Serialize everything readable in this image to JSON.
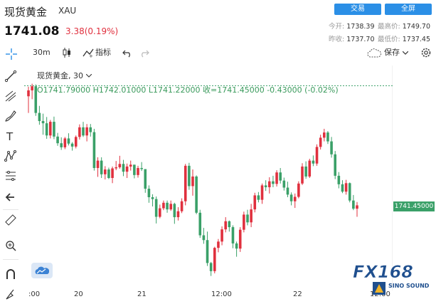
{
  "header": {
    "name": "现货黄金",
    "code": "XAU",
    "price": "1741.08",
    "change": "3.38(0.19%)",
    "trade_btn": "交易",
    "fullscreen_btn": "全屏"
  },
  "stats": {
    "open_label": "今开:",
    "open": "1738.39",
    "high_label": "最高价:",
    "high": "1749.70",
    "prev_label": "昨收:",
    "prev": "1737.70",
    "low_label": "最低价:",
    "low": "1737.45"
  },
  "toolbar": {
    "interval": "30m",
    "indicators": "指标",
    "save": "保存"
  },
  "legend": {
    "title": "现货黄金",
    "interval": "30",
    "ohlc": "O1741.79000  H1742.01000  L1741.22000  收=1741.45000  -0.43000  (-0.02%)"
  },
  "chart_data": {
    "type": "candlestick",
    "last_price_label": "1741.45000",
    "x_ticks": [
      ":00",
      "20",
      "21",
      "12:00",
      "22",
      "12:00"
    ],
    "up_color": "#e0303e",
    "down_color": "#3aa068",
    "candles": [
      [
        1738.6,
        1741.2,
        1734.1,
        1740.2
      ],
      [
        1740.2,
        1742.0,
        1737.8,
        1741.3
      ],
      [
        1741.3,
        1741.8,
        1733.3,
        1734.1
      ],
      [
        1734.1,
        1736.0,
        1730.9,
        1731.9
      ],
      [
        1731.9,
        1733.9,
        1728.2,
        1731.3
      ],
      [
        1731.3,
        1733.0,
        1727.1,
        1728.0
      ],
      [
        1728.0,
        1732.2,
        1727.2,
        1731.7
      ],
      [
        1731.7,
        1733.1,
        1727.0,
        1727.7
      ],
      [
        1727.7,
        1728.7,
        1725.2,
        1725.9
      ],
      [
        1725.9,
        1727.5,
        1724.1,
        1724.8
      ],
      [
        1724.8,
        1727.6,
        1724.3,
        1727.2
      ],
      [
        1727.2,
        1728.6,
        1725.3,
        1725.8
      ],
      [
        1725.8,
        1726.2,
        1723.9,
        1725.0
      ],
      [
        1725.0,
        1728.0,
        1724.5,
        1727.6
      ],
      [
        1727.6,
        1731.0,
        1726.9,
        1730.2
      ],
      [
        1730.2,
        1731.7,
        1727.6,
        1728.0
      ],
      [
        1728.0,
        1731.1,
        1726.4,
        1730.2
      ],
      [
        1730.2,
        1731.1,
        1727.7,
        1728.9
      ],
      [
        1728.9,
        1729.8,
        1718.5,
        1719.2
      ],
      [
        1719.2,
        1722.1,
        1716.8,
        1721.2
      ],
      [
        1721.2,
        1722.1,
        1716.5,
        1717.5
      ],
      [
        1717.5,
        1719.7,
        1716.1,
        1718.8
      ],
      [
        1718.8,
        1719.3,
        1716.2,
        1716.5
      ],
      [
        1716.5,
        1719.6,
        1715.1,
        1719.1
      ],
      [
        1719.1,
        1721.1,
        1718.6,
        1719.4
      ],
      [
        1719.4,
        1722.5,
        1719.0,
        1720.3
      ],
      [
        1720.3,
        1721.4,
        1717.0,
        1718.2
      ],
      [
        1718.2,
        1720.4,
        1716.5,
        1719.6
      ],
      [
        1719.6,
        1721.2,
        1718.5,
        1720.1
      ],
      [
        1720.1,
        1720.1,
        1716.4,
        1717.3
      ],
      [
        1717.3,
        1719.8,
        1716.6,
        1719.2
      ],
      [
        1719.2,
        1720.8,
        1718.4,
        1718.9
      ],
      [
        1718.9,
        1718.9,
        1712.5,
        1713.6
      ],
      [
        1713.6,
        1714.5,
        1709.8,
        1711.3
      ],
      [
        1711.3,
        1712.1,
        1708.8,
        1710.8
      ],
      [
        1710.8,
        1711.5,
        1704.2,
        1706.0
      ],
      [
        1706.0,
        1709.3,
        1705.6,
        1708.3
      ],
      [
        1708.3,
        1710.4,
        1707.8,
        1709.8
      ],
      [
        1709.8,
        1710.4,
        1707.1,
        1708.0
      ],
      [
        1708.0,
        1710.4,
        1707.6,
        1709.5
      ],
      [
        1709.5,
        1709.8,
        1704.1,
        1705.9
      ],
      [
        1705.9,
        1708.6,
        1705.0,
        1707.5
      ],
      [
        1707.5,
        1711.0,
        1707.0,
        1710.2
      ],
      [
        1710.2,
        1720.3,
        1709.1,
        1719.8
      ],
      [
        1719.8,
        1720.6,
        1713.3,
        1714.3
      ],
      [
        1714.3,
        1718.8,
        1711.7,
        1716.9
      ],
      [
        1716.9,
        1717.2,
        1706.7,
        1707.1
      ],
      [
        1707.1,
        1707.9,
        1700.3,
        1701.0
      ],
      [
        1701.0,
        1703.0,
        1698.7,
        1699.7
      ],
      [
        1699.7,
        1702.0,
        1692.7,
        1693.5
      ],
      [
        1693.5,
        1693.8,
        1690.0,
        1691.3
      ],
      [
        1691.3,
        1697.9,
        1690.7,
        1697.6
      ],
      [
        1697.6,
        1700.0,
        1696.4,
        1699.3
      ],
      [
        1699.3,
        1703.4,
        1698.3,
        1702.6
      ],
      [
        1702.6,
        1705.9,
        1701.8,
        1704.8
      ],
      [
        1704.8,
        1705.0,
        1702.0,
        1703.2
      ],
      [
        1703.2,
        1703.7,
        1697.5,
        1698.8
      ],
      [
        1698.8,
        1699.3,
        1695.2,
        1697.4
      ],
      [
        1697.4,
        1703.2,
        1696.5,
        1702.5
      ],
      [
        1702.5,
        1707.4,
        1701.8,
        1706.6
      ],
      [
        1706.6,
        1707.9,
        1703.7,
        1704.5
      ],
      [
        1704.5,
        1709.5,
        1703.2,
        1708.0
      ],
      [
        1708.0,
        1712.5,
        1707.2,
        1711.8
      ],
      [
        1711.8,
        1712.7,
        1709.9,
        1710.6
      ],
      [
        1710.6,
        1715.0,
        1709.5,
        1714.5
      ],
      [
        1714.5,
        1715.9,
        1713.0,
        1714.0
      ],
      [
        1714.0,
        1716.7,
        1712.3,
        1715.6
      ],
      [
        1715.6,
        1717.1,
        1714.0,
        1714.9
      ],
      [
        1714.9,
        1718.6,
        1714.2,
        1718.0
      ],
      [
        1718.0,
        1719.2,
        1715.0,
        1715.8
      ],
      [
        1715.8,
        1716.6,
        1713.1,
        1713.9
      ],
      [
        1713.9,
        1715.5,
        1711.3,
        1712.0
      ],
      [
        1712.0,
        1712.6,
        1709.1,
        1710.2
      ],
      [
        1710.2,
        1712.3,
        1708.4,
        1711.4
      ],
      [
        1711.4,
        1715.6,
        1711.0,
        1715.0
      ],
      [
        1715.0,
        1720.5,
        1714.6,
        1719.6
      ],
      [
        1719.6,
        1721.0,
        1716.3,
        1716.9
      ],
      [
        1716.9,
        1721.7,
        1716.5,
        1721.2
      ],
      [
        1721.2,
        1722.6,
        1719.7,
        1720.4
      ],
      [
        1720.4,
        1725.6,
        1719.8,
        1724.9
      ],
      [
        1724.9,
        1728.2,
        1724.2,
        1727.4
      ],
      [
        1727.4,
        1729.8,
        1726.4,
        1728.8
      ],
      [
        1728.8,
        1729.2,
        1725.7,
        1726.4
      ],
      [
        1726.4,
        1727.6,
        1722.0,
        1722.9
      ],
      [
        1722.9,
        1723.8,
        1716.2,
        1717.1
      ],
      [
        1717.1,
        1718.1,
        1713.7,
        1714.8
      ],
      [
        1714.8,
        1715.9,
        1712.4,
        1712.8
      ],
      [
        1712.8,
        1716.0,
        1712.0,
        1715.1
      ],
      [
        1715.1,
        1715.3,
        1709.9,
        1710.4
      ],
      [
        1710.4,
        1711.9,
        1707.8,
        1708.2
      ],
      [
        1708.2,
        1710.0,
        1706.0,
        1709.1
      ]
    ]
  }
}
